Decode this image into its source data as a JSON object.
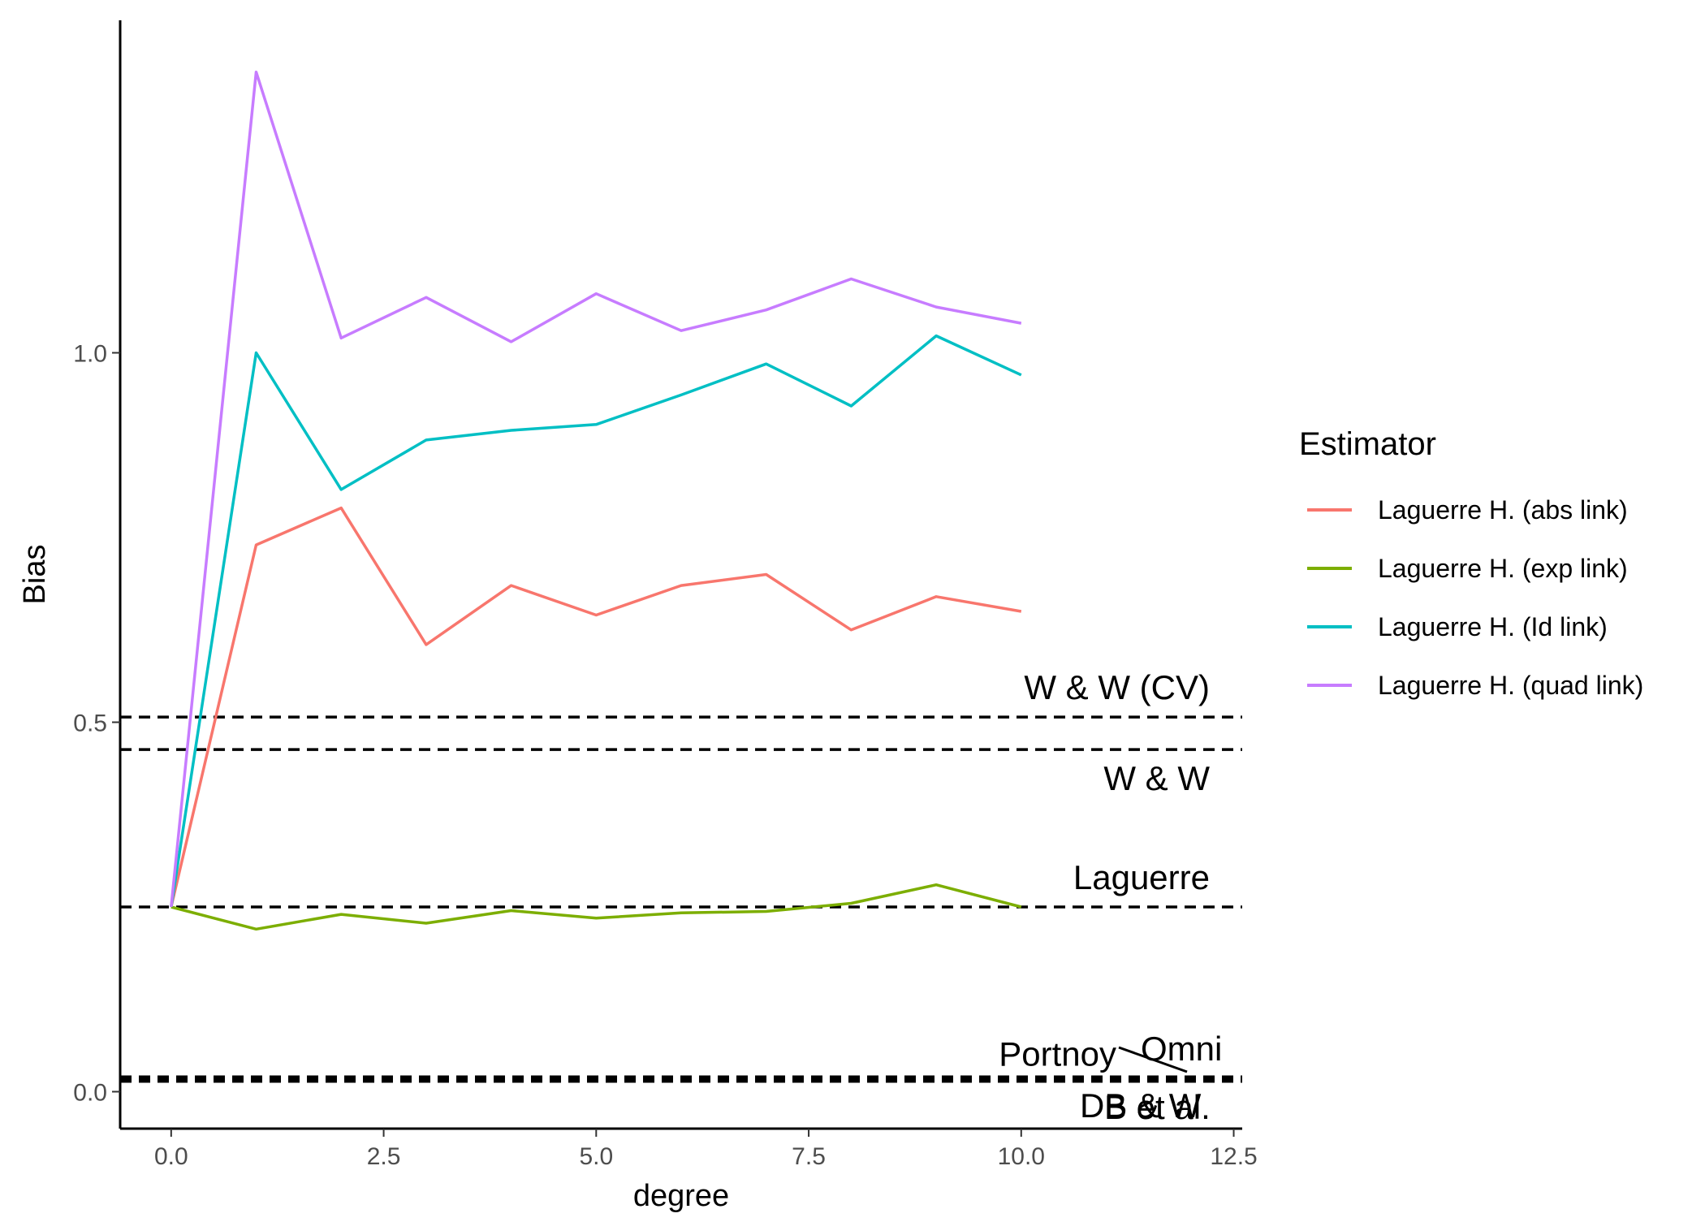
{
  "chart_data": {
    "type": "line",
    "xlabel": "degree",
    "ylabel": "Bias",
    "xlim": [
      -0.6,
      12.6
    ],
    "ylim": [
      -0.05,
      1.45
    ],
    "x_ticks": [
      "0.0",
      "2.5",
      "5.0",
      "7.5",
      "10.0",
      "12.5"
    ],
    "y_ticks": [
      "0.0",
      "0.5",
      "1.0"
    ],
    "grid": false,
    "legend": {
      "title": "Estimator",
      "position": "right",
      "entries": [
        "Laguerre H. (abs link)",
        "Laguerre H. (exp link)",
        "Laguerre H. (Id link)",
        "Laguerre H. (quad link)"
      ]
    },
    "x": [
      0,
      1,
      2,
      3,
      4,
      5,
      6,
      7,
      8,
      9,
      10
    ],
    "series": [
      {
        "name": "Laguerre H. (abs link)",
        "color": "#F8766D",
        "values": [
          0.25,
          0.74,
          0.79,
          0.605,
          0.685,
          0.645,
          0.685,
          0.7,
          0.625,
          0.67,
          0.65
        ]
      },
      {
        "name": "Laguerre H. (exp link)",
        "color": "#7CAE00",
        "values": [
          0.25,
          0.22,
          0.24,
          0.228,
          0.245,
          0.235,
          0.242,
          0.244,
          0.255,
          0.28,
          0.25
        ]
      },
      {
        "name": "Laguerre H. (Id link)",
        "color": "#00BFC4",
        "values": [
          0.25,
          1.0,
          0.815,
          0.882,
          0.895,
          0.903,
          0.943,
          0.985,
          0.928,
          1.023,
          0.97
        ]
      },
      {
        "name": "Laguerre H. (quad link)",
        "color": "#C77CFF",
        "values": [
          0.25,
          1.38,
          1.02,
          1.075,
          1.015,
          1.08,
          1.03,
          1.058,
          1.1,
          1.062,
          1.04
        ]
      }
    ],
    "hlines": [
      {
        "label": "W & W (CV)",
        "y": 0.507,
        "style": "dashed",
        "label_position": "above"
      },
      {
        "label": "W & W",
        "y": 0.463,
        "style": "dashed",
        "label_position": "below"
      },
      {
        "label": "Laguerre",
        "y": 0.25,
        "style": "dashed",
        "label_position": "above"
      },
      {
        "label": "Portnoy",
        "y": 0.02,
        "style": "dashed",
        "label_position": "above"
      },
      {
        "label": "Omni",
        "y": 0.018,
        "style": "dashed",
        "label_position": "above"
      },
      {
        "label": "DB & W",
        "y": 0.016,
        "style": "dashed",
        "label_position": "below"
      },
      {
        "label": "B et al.",
        "y": 0.014,
        "style": "dashed",
        "label_position": "below"
      }
    ]
  }
}
